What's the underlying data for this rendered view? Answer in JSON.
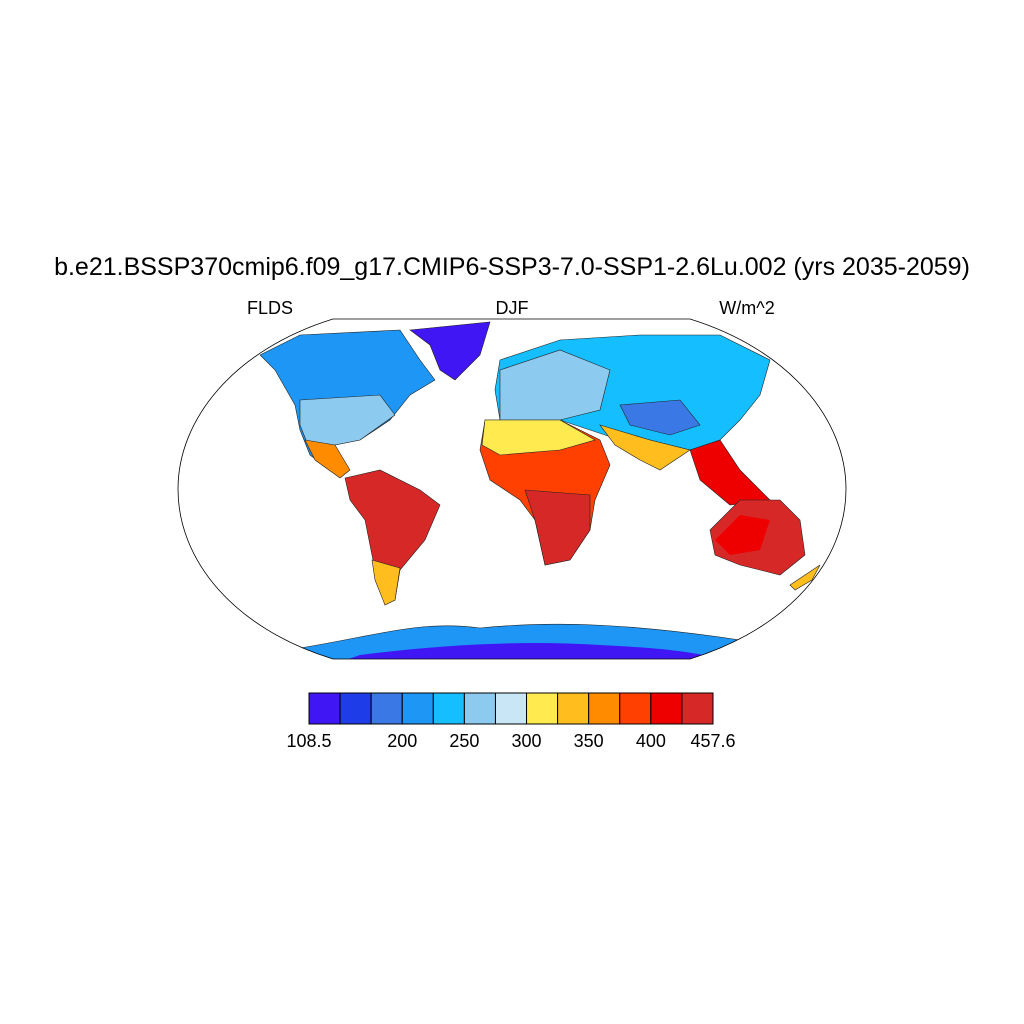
{
  "title": "b.e21.BSSP370cmip6.f09_g17.CMIP6-SSP3-7.0-SSP1-2.6Lu.002 (yrs 2035-2059)",
  "left_label": "FLDS",
  "center_label": "DJF",
  "right_label": "W/m^2",
  "colorbar": {
    "colors": [
      "#4016f5",
      "#1e3ce8",
      "#3a78e6",
      "#1e96f5",
      "#14beff",
      "#8ccaf0",
      "#c8e6f5",
      "#ffeb50",
      "#ffbe1e",
      "#ff8c00",
      "#ff4000",
      "#ee0000",
      "#d72828"
    ],
    "labels": [
      108.5,
      200,
      250,
      300,
      350,
      400,
      457.6
    ]
  }
}
